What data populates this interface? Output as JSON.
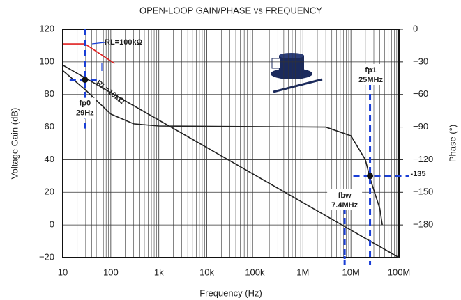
{
  "chart_data": {
    "type": "line",
    "title": "OPEN-LOOP GAIN/PHASE vs FREQUENCY",
    "xlabel": "Frequency (Hz)",
    "ylabel": "Voltage Gain (dB)",
    "y2label": "Phase (°)",
    "xscale": "log",
    "xlim": [
      10,
      100000000
    ],
    "xticks": [
      10,
      100,
      {
        "value": 1000,
        "label": "1k"
      },
      {
        "value": 10000,
        "label": "10k"
      },
      {
        "value": 100000,
        "label": "100k"
      },
      {
        "value": 1000000,
        "label": "1M"
      },
      {
        "value": 10000000,
        "label": "10M"
      },
      {
        "value": 100000000,
        "label": "100M"
      }
    ],
    "ylim": [
      -20,
      120
    ],
    "yticks": [
      {
        "value": -20,
        "label": "−20"
      },
      0,
      20,
      40,
      60,
      80,
      100,
      120
    ],
    "y2lim": [
      -210,
      0
    ],
    "y2ticks": [
      0,
      {
        "value": -30,
        "label": "−30"
      },
      {
        "value": -60,
        "label": "−60"
      },
      {
        "value": -90,
        "label": "−90"
      },
      {
        "value": -120,
        "label": "−120"
      },
      {
        "value": -150,
        "label": "−150"
      },
      {
        "value": -180,
        "label": "−180"
      }
    ],
    "grid": true,
    "series": [
      {
        "name": "RL=10kΩ",
        "color": "#222222",
        "x": [
          10,
          100000000
        ],
        "values": [
          98,
          -20
        ]
      },
      {
        "name": "RL=100kΩ",
        "color": "#e02020",
        "x": [
          10,
          29,
          120
        ],
        "values": [
          111,
          111,
          99
        ]
      },
      {
        "color": "#222222",
        "axis": "y2",
        "x": [
          10,
          30,
          100,
          300,
          1000,
          3000000,
          10000000,
          20000000,
          25000000,
          40000000,
          45000000
        ],
        "values": [
          -38,
          -56,
          -78,
          -87,
          -89,
          -90,
          -98,
          -120,
          -137,
          -165,
          -180
        ]
      }
    ],
    "markers": [
      {
        "x": 29,
        "y": 89,
        "axis": "y",
        "labels": [
          "fp0",
          "29Hz"
        ]
      },
      {
        "x": 25000000,
        "y": -135,
        "axis": "y2",
        "labels": [
          "fp1",
          "25MHz"
        ],
        "value_label": "-135"
      },
      {
        "x": 7400000,
        "labels": [
          "fbw",
          "7.4MHz"
        ]
      }
    ],
    "marker_color": "#1a3fd6"
  }
}
